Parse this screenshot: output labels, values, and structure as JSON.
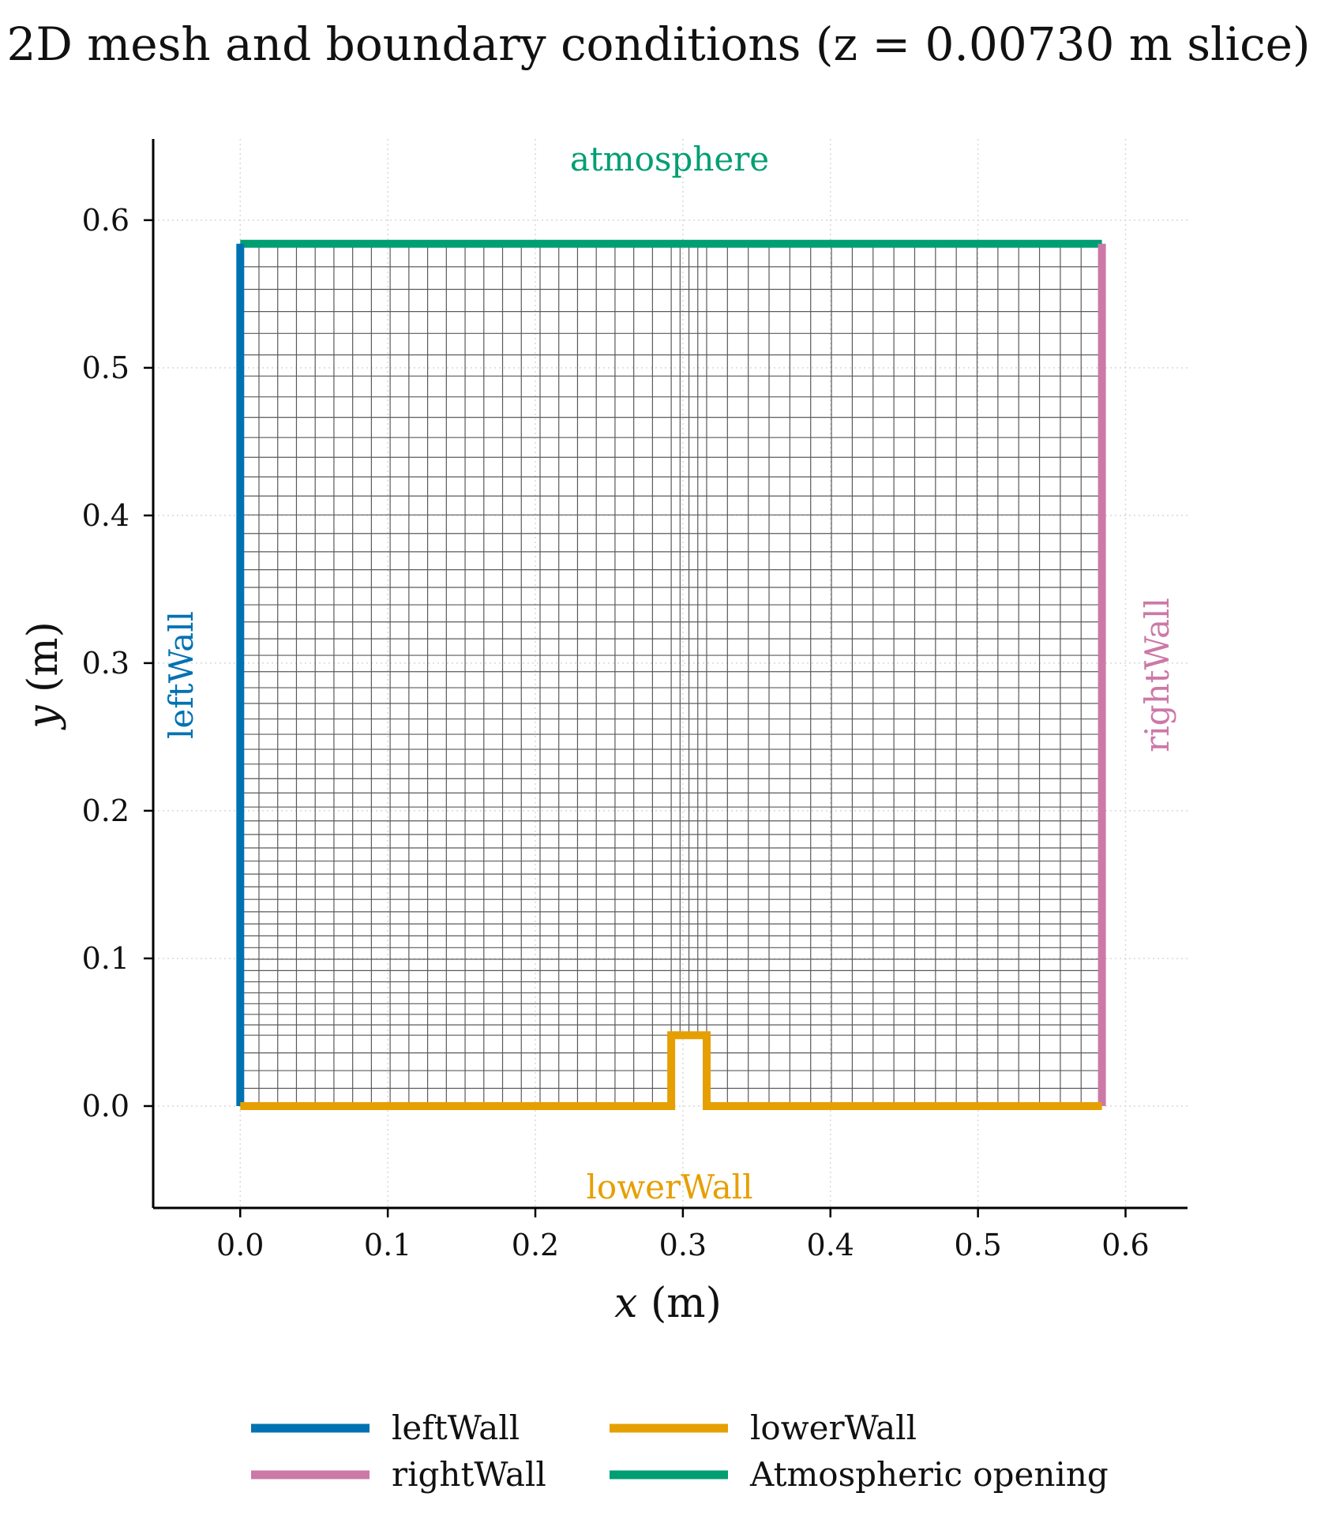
{
  "chart_data": {
    "type": "line",
    "title": "2D mesh and boundary conditions (z = 0.00730 m slice)",
    "xlabel": "x (m)",
    "ylabel": "y (m)",
    "xlim": [
      -0.059,
      0.642
    ],
    "ylim": [
      -0.069,
      0.655
    ],
    "x_ticks": [
      "0.0",
      "0.1",
      "0.2",
      "0.3",
      "0.4",
      "0.5",
      "0.6"
    ],
    "y_ticks": [
      "0.0",
      "0.1",
      "0.2",
      "0.3",
      "0.4",
      "0.5",
      "0.6"
    ],
    "grid": true,
    "legend_position": "below plot, two columns",
    "domain": {
      "x_min": 0.0,
      "x_max": 0.584,
      "y_min": 0.0,
      "y_max": 0.584
    },
    "obstacle": {
      "x_min": 0.2921,
      "x_max": 0.3161,
      "height": 0.048
    },
    "mesh": {
      "x_cells_left": 23,
      "x_cells_obstacle": 4,
      "x_cells_right": 19,
      "y_cells_lower": 4,
      "y_cells_upper": 50,
      "y_grading_upper": 0.45
    },
    "series": [
      {
        "name": "leftWall",
        "color": "#0072B2",
        "x": [
          0.0,
          0.0
        ],
        "y": [
          0.0,
          0.584
        ]
      },
      {
        "name": "rightWall",
        "color": "#CC79A7",
        "x": [
          0.584,
          0.584
        ],
        "y": [
          0.0,
          0.584
        ]
      },
      {
        "name": "lowerWall",
        "color": "#E69F00",
        "x": [
          0.0,
          0.2921,
          0.2921,
          0.3161,
          0.3161,
          0.584
        ],
        "y": [
          0.0,
          0.0,
          0.048,
          0.048,
          0.0,
          0.0
        ]
      },
      {
        "name": "Atmospheric opening",
        "color": "#009E73",
        "x": [
          0.0,
          0.584
        ],
        "y": [
          0.584,
          0.584
        ]
      }
    ],
    "annotations": [
      {
        "text": "atmosphere",
        "color": "#009E73"
      },
      {
        "text": "leftWall",
        "color": "#0072B2"
      },
      {
        "text": "rightWall",
        "color": "#CC79A7"
      },
      {
        "text": "lowerWall",
        "color": "#E69F00"
      }
    ]
  }
}
